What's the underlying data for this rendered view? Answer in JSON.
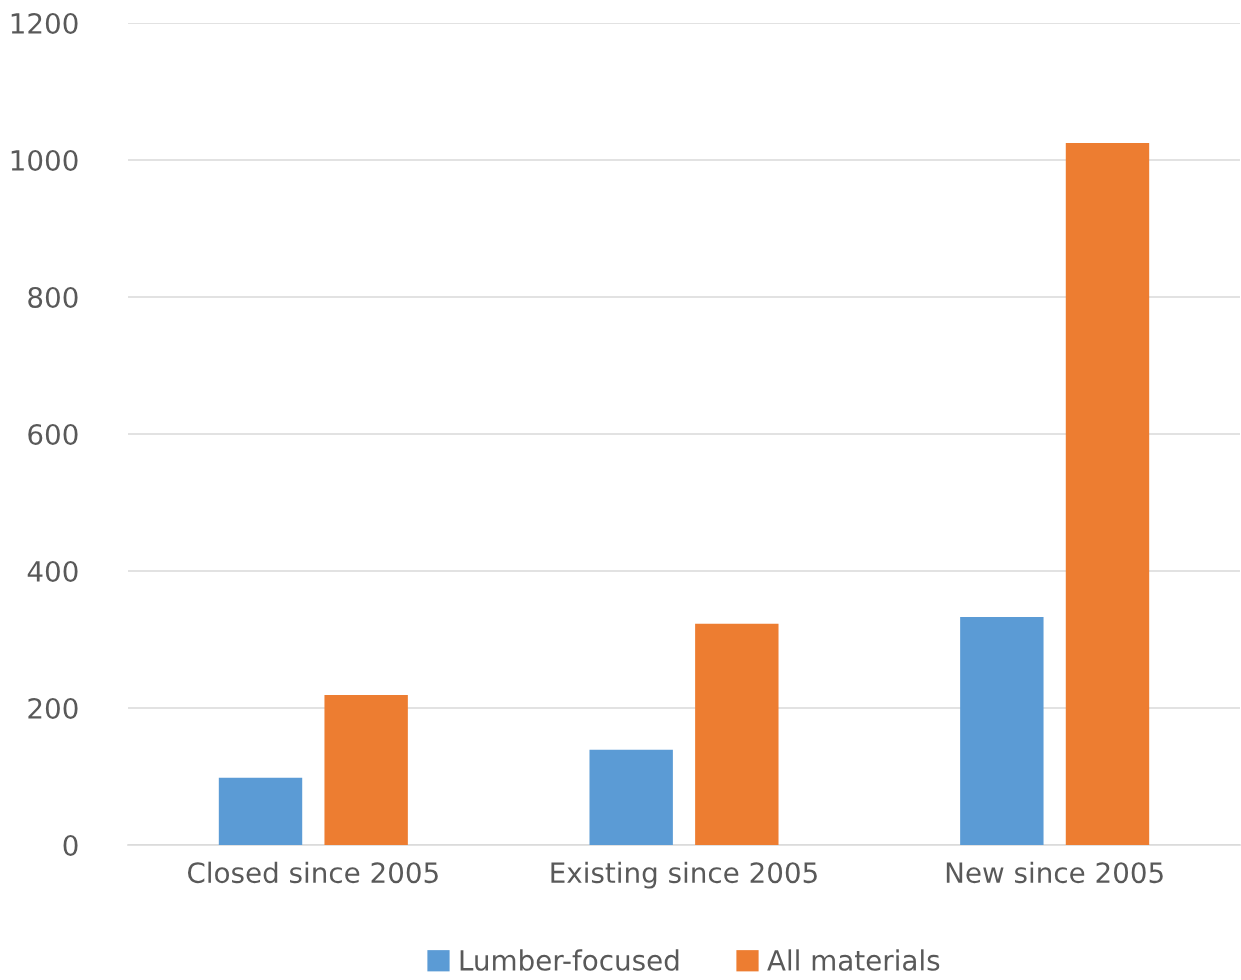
{
  "chart_data": {
    "type": "bar",
    "categories": [
      "Closed since 2005",
      "Existing since 2005",
      "New since 2005"
    ],
    "series": [
      {
        "name": "Lumber-focused",
        "color": "#5b9bd5",
        "values": [
          98,
          139,
          333
        ]
      },
      {
        "name": "All materials",
        "color": "#ed7d31",
        "values": [
          219,
          323,
          1025
        ]
      }
    ],
    "ylim": [
      0,
      1200
    ],
    "yticks": [
      0,
      200,
      400,
      600,
      800,
      1000,
      1200
    ],
    "grid": "y",
    "legend": "bottom"
  }
}
